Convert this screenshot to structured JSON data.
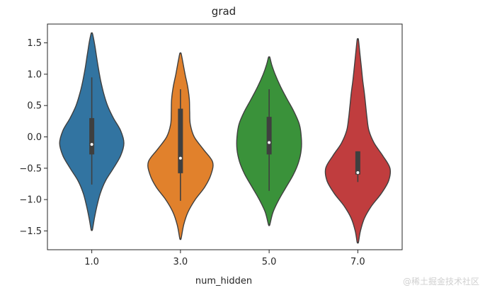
{
  "chart_data": {
    "type": "violin",
    "title": "grad",
    "xlabel": "num_hidden",
    "ylabel": "",
    "categories": [
      "1.0",
      "3.0",
      "5.0",
      "7.0"
    ],
    "colors": [
      "#3274a1",
      "#e1812c",
      "#3a923a",
      "#c03d3e"
    ],
    "ylim": [
      -1.8,
      1.8
    ],
    "yticks": [
      1.5,
      1.0,
      0.5,
      0.0,
      -0.5,
      -1.0,
      -1.5
    ],
    "ytick_labels": [
      "1.5",
      "1.0",
      "0.5",
      "0.0",
      "−0.5",
      "−1.0",
      "−1.5"
    ],
    "series": [
      {
        "category": "1.0",
        "min": -1.48,
        "max": 1.65,
        "whisker_low": -0.76,
        "q1": -0.28,
        "median": -0.12,
        "q3": 0.3,
        "whisker_high": 0.95,
        "density": [
          [
            -1.48,
            0.02
          ],
          [
            -1.3,
            0.08
          ],
          [
            -1.1,
            0.16
          ],
          [
            -0.9,
            0.26
          ],
          [
            -0.7,
            0.42
          ],
          [
            -0.5,
            0.66
          ],
          [
            -0.3,
            0.88
          ],
          [
            -0.1,
            0.98
          ],
          [
            0.1,
            0.88
          ],
          [
            0.3,
            0.66
          ],
          [
            0.5,
            0.48
          ],
          [
            0.7,
            0.36
          ],
          [
            0.9,
            0.27
          ],
          [
            1.1,
            0.2
          ],
          [
            1.3,
            0.14
          ],
          [
            1.5,
            0.08
          ],
          [
            1.65,
            0.02
          ]
        ]
      },
      {
        "category": "3.0",
        "min": -1.62,
        "max": 1.33,
        "whisker_low": -1.02,
        "q1": -0.58,
        "median": -0.34,
        "q3": 0.45,
        "whisker_high": 0.76,
        "density": [
          [
            -1.62,
            0.02
          ],
          [
            -1.4,
            0.1
          ],
          [
            -1.2,
            0.23
          ],
          [
            -1.0,
            0.45
          ],
          [
            -0.8,
            0.74
          ],
          [
            -0.6,
            0.93
          ],
          [
            -0.4,
            0.98
          ],
          [
            -0.2,
            0.7
          ],
          [
            0.0,
            0.42
          ],
          [
            0.2,
            0.3
          ],
          [
            0.4,
            0.28
          ],
          [
            0.6,
            0.27
          ],
          [
            0.8,
            0.22
          ],
          [
            1.0,
            0.14
          ],
          [
            1.2,
            0.07
          ],
          [
            1.33,
            0.02
          ]
        ]
      },
      {
        "category": "5.0",
        "min": -1.4,
        "max": 1.27,
        "whisker_low": -0.86,
        "q1": -0.28,
        "median": -0.09,
        "q3": 0.32,
        "whisker_high": 0.76,
        "density": [
          [
            -1.4,
            0.02
          ],
          [
            -1.2,
            0.12
          ],
          [
            -1.0,
            0.3
          ],
          [
            -0.8,
            0.52
          ],
          [
            -0.6,
            0.74
          ],
          [
            -0.4,
            0.9
          ],
          [
            -0.2,
            0.98
          ],
          [
            0.0,
            0.98
          ],
          [
            0.2,
            0.92
          ],
          [
            0.4,
            0.76
          ],
          [
            0.6,
            0.55
          ],
          [
            0.8,
            0.35
          ],
          [
            1.0,
            0.18
          ],
          [
            1.15,
            0.08
          ],
          [
            1.27,
            0.02
          ]
        ]
      },
      {
        "category": "7.0",
        "min": -1.68,
        "max": 1.55,
        "whisker_low": -0.72,
        "q1": -0.6,
        "median": -0.57,
        "q3": -0.23,
        "whisker_high": -0.23,
        "density": [
          [
            -1.68,
            0.02
          ],
          [
            -1.5,
            0.08
          ],
          [
            -1.3,
            0.2
          ],
          [
            -1.1,
            0.42
          ],
          [
            -0.9,
            0.72
          ],
          [
            -0.7,
            0.94
          ],
          [
            -0.5,
            0.98
          ],
          [
            -0.3,
            0.76
          ],
          [
            -0.1,
            0.5
          ],
          [
            0.1,
            0.34
          ],
          [
            0.3,
            0.28
          ],
          [
            0.5,
            0.24
          ],
          [
            0.7,
            0.2
          ],
          [
            0.9,
            0.15
          ],
          [
            1.1,
            0.11
          ],
          [
            1.3,
            0.07
          ],
          [
            1.55,
            0.02
          ]
        ]
      }
    ],
    "grid": false,
    "legend": "none"
  },
  "watermark": "@稀土掘金技术社区"
}
